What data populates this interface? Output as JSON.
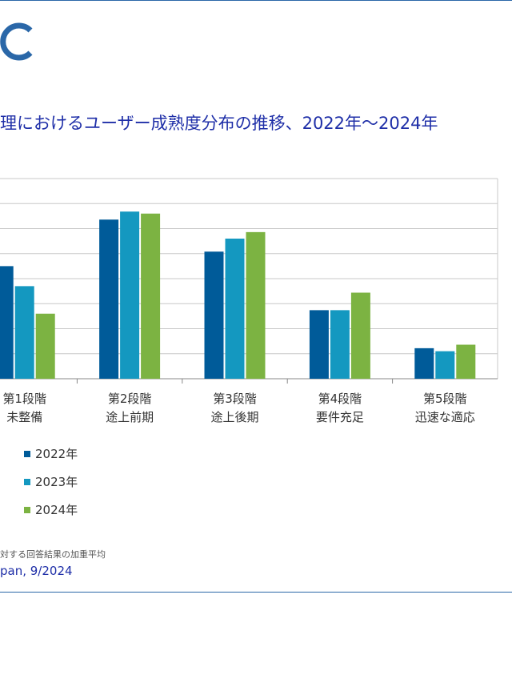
{
  "header": {
    "title": "理におけるユーザー成熟度分布の推移、2022年～2024年"
  },
  "colors": {
    "brand": "#2a67a8",
    "title": "#1f2fa8",
    "series_2022": "#005b99",
    "series_2023": "#1498c0",
    "series_2024": "#7cb342",
    "grid": "#c8c8c8"
  },
  "chart_data": {
    "type": "bar",
    "title": "理におけるユーザー成熟度分布の推移、2022年～2024年",
    "categories": [
      [
        "第1段階",
        "未整備"
      ],
      [
        "第2段階",
        "途上前期"
      ],
      [
        "第3段階",
        "途上後期"
      ],
      [
        "第4段階",
        "要件充足"
      ],
      [
        "第5段階",
        "迅速な適応"
      ]
    ],
    "series": [
      {
        "name": "2022年",
        "values": [
          22.5,
          31.8,
          25.4,
          13.7,
          6.1
        ]
      },
      {
        "name": "2023年",
        "values": [
          18.5,
          33.4,
          28.0,
          13.7,
          5.5
        ]
      },
      {
        "name": "2024年",
        "values": [
          13.0,
          33.0,
          29.3,
          17.2,
          6.8
        ]
      }
    ],
    "ylim": [
      0,
      40
    ],
    "grid": true,
    "xlabel": "",
    "ylabel": ""
  },
  "legend": {
    "items": [
      "2022年",
      "2023年",
      "2024年"
    ]
  },
  "footer": {
    "note": "対する回答結果の加重平均",
    "source": "pan, 9/2024"
  }
}
